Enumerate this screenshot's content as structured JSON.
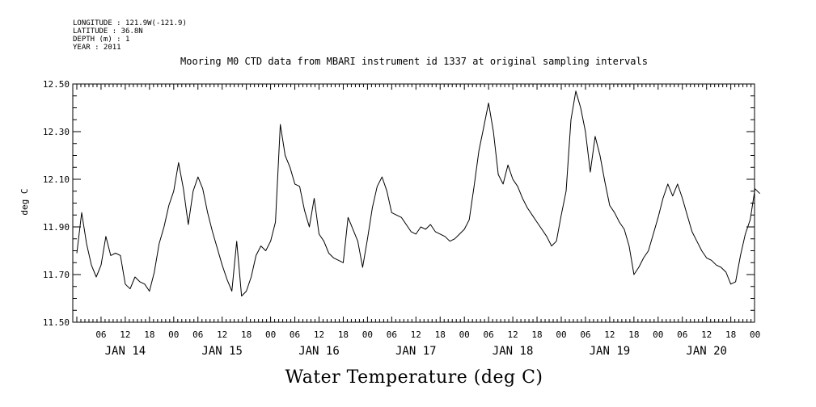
{
  "header": {
    "lines": [
      "LONGITUDE : 121.9W(-121.9)",
      "LATITUDE : 36.8N",
      "DEPTH (m) : 1",
      "YEAR : 2011"
    ]
  },
  "chart_data": {
    "type": "line",
    "title": "Mooring M0 CTD data from MBARI instrument id 1337 at original sampling intervals",
    "ylabel": "deg C",
    "footer": "Water Temperature (deg C)",
    "ylim": [
      11.5,
      12.5
    ],
    "xlim": [
      0.0,
      7.1
    ],
    "y_ticks": [
      "11.50",
      "11.70",
      "11.90",
      "12.10",
      "12.30",
      "12.50"
    ],
    "hour_ticks": [
      "06",
      "12",
      "18",
      "00",
      "06",
      "12",
      "18",
      "00",
      "06",
      "12",
      "18",
      "00",
      "06",
      "12",
      "18",
      "00",
      "06",
      "12",
      "18",
      "00",
      "06",
      "12",
      "18",
      "00",
      "06",
      "12",
      "18",
      "00"
    ],
    "day_labels": [
      "JAN 14",
      "JAN 15",
      "JAN 16",
      "JAN 17",
      "JAN 18",
      "JAN 19",
      "JAN 20"
    ],
    "x_unit": "days since JAN 14 00:00",
    "series": [
      {
        "name": "Water Temperature",
        "color": "#000000",
        "x": [
          0.0,
          0.05,
          0.1,
          0.15,
          0.2,
          0.25,
          0.3,
          0.35,
          0.4,
          0.45,
          0.5,
          0.55,
          0.6,
          0.65,
          0.7,
          0.75,
          0.8,
          0.85,
          0.9,
          0.95,
          1.0,
          1.05,
          1.1,
          1.15,
          1.2,
          1.25,
          1.3,
          1.35,
          1.4,
          1.45,
          1.5,
          1.55,
          1.6,
          1.65,
          1.7,
          1.75,
          1.8,
          1.85,
          1.9,
          1.95,
          2.0,
          2.05,
          2.1,
          2.15,
          2.2,
          2.25,
          2.3,
          2.35,
          2.4,
          2.45,
          2.5,
          2.55,
          2.6,
          2.65,
          2.7,
          2.75,
          2.8,
          2.85,
          2.9,
          2.95,
          3.0,
          3.05,
          3.1,
          3.15,
          3.2,
          3.25,
          3.3,
          3.35,
          3.4,
          3.45,
          3.5,
          3.55,
          3.6,
          3.65,
          3.7,
          3.75,
          3.8,
          3.85,
          3.9,
          3.95,
          4.0,
          4.05,
          4.1,
          4.15,
          4.2,
          4.25,
          4.3,
          4.35,
          4.4,
          4.45,
          4.5,
          4.55,
          4.6,
          4.65,
          4.7,
          4.75,
          4.8,
          4.85,
          4.9,
          4.95,
          5.0,
          5.05,
          5.1,
          5.15,
          5.2,
          5.25,
          5.3,
          5.35,
          5.4,
          5.45,
          5.5,
          5.55,
          5.6,
          5.65,
          5.7,
          5.75,
          5.8,
          5.85,
          5.9,
          5.95,
          6.0,
          6.05,
          6.1,
          6.15,
          6.2,
          6.25,
          6.3,
          6.35,
          6.4,
          6.45,
          6.5,
          6.55,
          6.6,
          6.65,
          6.7,
          6.75,
          6.8,
          6.85,
          6.9,
          6.95,
          7.0,
          7.05
        ],
        "y": [
          11.79,
          11.96,
          11.83,
          11.74,
          11.69,
          11.74,
          11.86,
          11.78,
          11.79,
          11.78,
          11.66,
          11.64,
          11.69,
          11.67,
          11.66,
          11.63,
          11.71,
          11.83,
          11.9,
          11.99,
          12.05,
          12.17,
          12.06,
          11.91,
          12.05,
          12.11,
          12.06,
          11.96,
          11.88,
          11.81,
          11.74,
          11.68,
          11.63,
          11.84,
          11.61,
          11.63,
          11.69,
          11.78,
          11.82,
          11.8,
          11.84,
          11.92,
          12.33,
          12.2,
          12.15,
          12.08,
          12.07,
          11.97,
          11.9,
          12.02,
          11.87,
          11.84,
          11.79,
          11.77,
          11.76,
          11.75,
          11.94,
          11.89,
          11.84,
          11.73,
          11.85,
          11.98,
          12.07,
          12.11,
          12.05,
          11.96,
          11.95,
          11.94,
          11.91,
          11.88,
          11.87,
          11.9,
          11.89,
          11.91,
          11.88,
          11.87,
          11.86,
          11.84,
          11.85,
          11.87,
          11.89,
          11.93,
          12.07,
          12.22,
          12.32,
          12.42,
          12.3,
          12.12,
          12.08,
          12.16,
          12.1,
          12.07,
          12.02,
          11.98,
          11.95,
          11.92,
          11.89,
          11.86,
          11.82,
          11.84,
          11.95,
          12.05,
          12.35,
          12.47,
          12.4,
          12.3,
          12.13,
          12.28,
          12.2,
          12.09,
          11.99,
          11.96,
          11.92,
          11.89,
          11.82,
          11.7,
          11.73,
          11.77,
          11.8,
          11.87,
          11.94,
          12.02,
          12.08,
          12.03,
          12.08,
          12.02,
          11.95,
          11.88,
          11.84,
          11.8,
          11.77,
          11.76,
          11.74,
          11.73,
          11.71,
          11.66,
          11.67,
          11.78,
          11.87,
          11.93,
          12.06,
          12.04
        ]
      }
    ]
  }
}
